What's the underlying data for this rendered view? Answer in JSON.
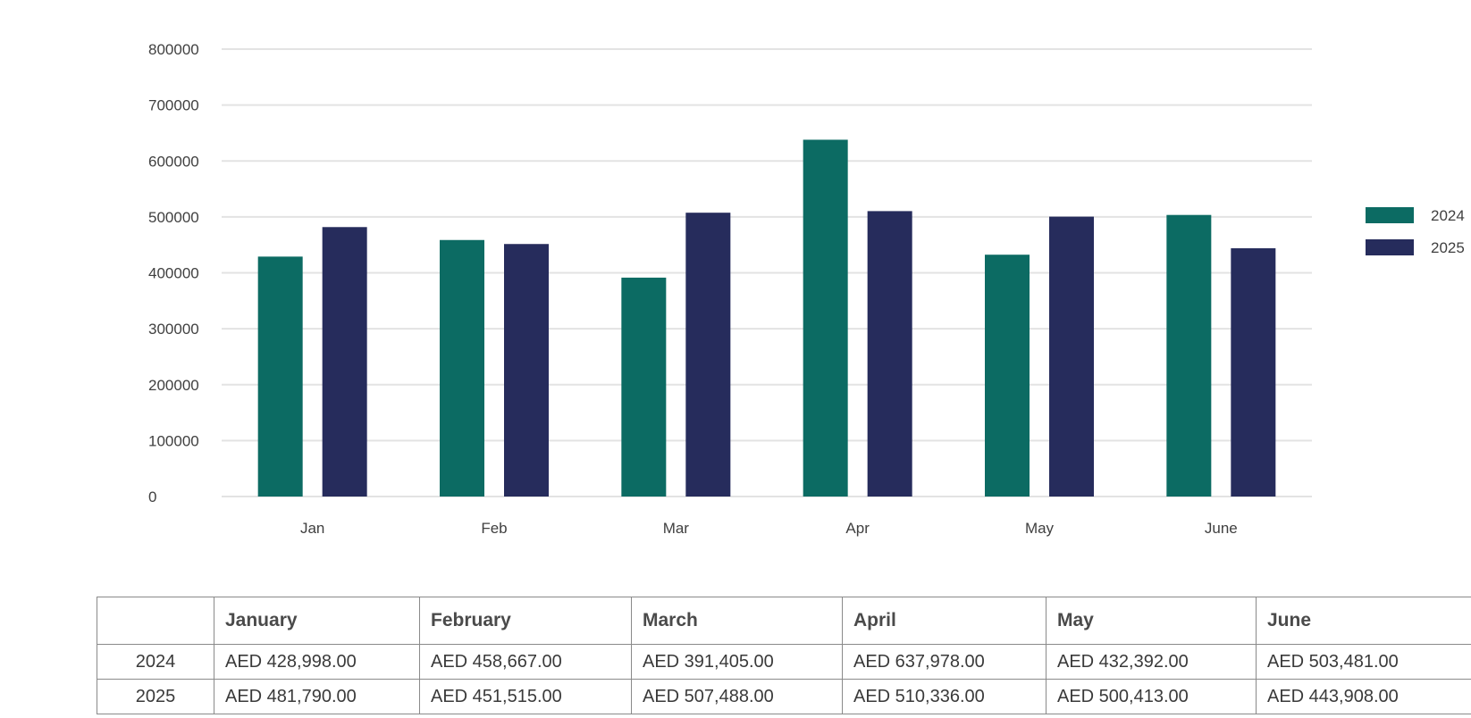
{
  "chart_data": {
    "type": "bar",
    "title": "",
    "xlabel": "",
    "ylabel": "",
    "categories": [
      "Jan",
      "Feb",
      "Mar",
      "Apr",
      "May",
      "June"
    ],
    "series": [
      {
        "name": "2024",
        "color": "#0c6b63",
        "values": [
          428998,
          458667,
          391405,
          637978,
          432392,
          503481
        ]
      },
      {
        "name": "2025",
        "color": "#262c5c",
        "values": [
          481790,
          451515,
          507488,
          510336,
          500413,
          443908
        ]
      }
    ],
    "ylim": [
      0,
      800000
    ],
    "yticks": [
      "0",
      "100000",
      "200000",
      "300000",
      "400000",
      "500000",
      "600000",
      "700000",
      "800000"
    ],
    "grid": true,
    "legend_position": "right"
  },
  "table": {
    "header": [
      "",
      "January",
      "February",
      "March",
      "April",
      "May",
      "June"
    ],
    "rows": [
      {
        "label": "2024",
        "cells": [
          "AED 428,998.00",
          "AED 458,667.00",
          "AED 391,405.00",
          "AED 637,978.00",
          "AED 432,392.00",
          "AED 503,481.00"
        ]
      },
      {
        "label": "2025",
        "cells": [
          "AED 481,790.00",
          "AED 451,515.00",
          "AED 507,488.00",
          "AED 510,336.00",
          "AED 500,413.00",
          "AED 443,908.00"
        ]
      }
    ]
  }
}
